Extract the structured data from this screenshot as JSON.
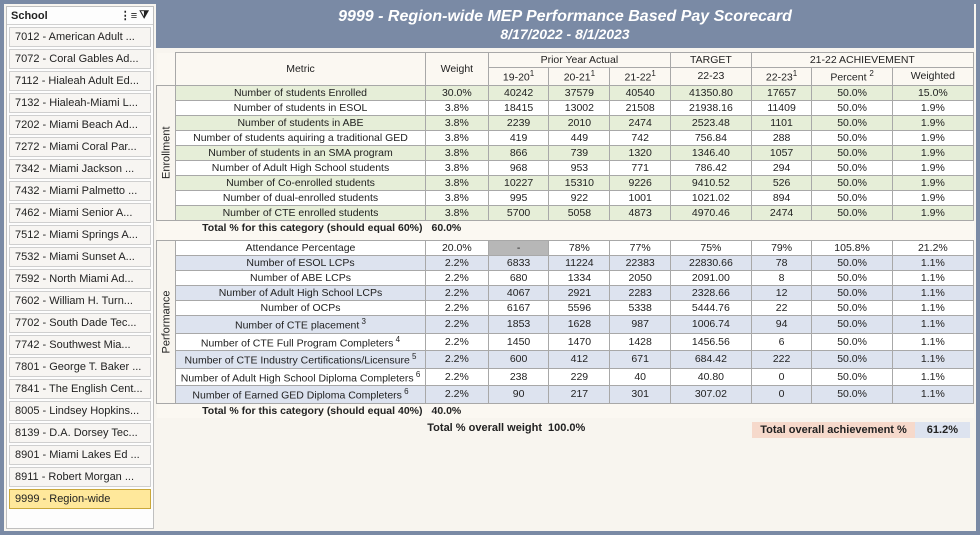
{
  "slicer": {
    "title": "School",
    "items": [
      "7012 - American Adult ...",
      "7072 - Coral Gables Ad...",
      "7112 - Hialeah Adult Ed...",
      "7132 - Hialeah-Miami L...",
      "7202 - Miami Beach Ad...",
      "7272 - Miami Coral Par...",
      "7342 - Miami Jackson ...",
      "7432 - Miami Palmetto ...",
      "7462 - Miami Senior A...",
      "7512 - Miami Springs A...",
      "7532 - Miami Sunset A...",
      "7592 - North Miami Ad...",
      "7602 - William H. Turn...",
      "7702 - South Dade Tec...",
      "7742 - Southwest Mia...",
      "7801 - George T. Baker ...",
      "7841 - The English Cent...",
      "8005 - Lindsey Hopkins...",
      "8139 - D.A. Dorsey Tec...",
      "8901 - Miami Lakes Ed ...",
      "8911 - Robert Morgan ...",
      "9999 - Region-wide"
    ],
    "selected": "9999 - Region-wide"
  },
  "title": {
    "line1": "9999 - Region-wide MEP Performance Based Pay Scorecard",
    "line2": "8/17/2022 - 8/1/2023"
  },
  "headers": {
    "metric": "Metric",
    "weight": "Weight",
    "prior": "Prior Year Actual",
    "y1": "19-20",
    "y2": "20-21",
    "y3": "21-22",
    "target": "TARGET",
    "target_year": "22-23",
    "ach": "21-22 ACHIEVEMENT",
    "ach_year": "22-23",
    "percent": "Percent",
    "weighted": "Weighted"
  },
  "sup": {
    "one": "1",
    "two": "2"
  },
  "categories": {
    "enroll": "Enrollment",
    "perf": "Performance"
  },
  "enrollment_rows": [
    {
      "metric": "Number of students Enrolled",
      "weight": "30.0%",
      "y1": "40242",
      "y2": "37579",
      "y3": "40540",
      "target": "41350.80",
      "ach": "17657",
      "pct": "50.0%",
      "wt": "15.0%",
      "shade": "green"
    },
    {
      "metric": "Number of students in ESOL",
      "weight": "3.8%",
      "y1": "18415",
      "y2": "13002",
      "y3": "21508",
      "target": "21938.16",
      "ach": "11409",
      "pct": "50.0%",
      "wt": "1.9%",
      "shade": "white"
    },
    {
      "metric": "Number of students in ABE",
      "weight": "3.8%",
      "y1": "2239",
      "y2": "2010",
      "y3": "2474",
      "target": "2523.48",
      "ach": "1101",
      "pct": "50.0%",
      "wt": "1.9%",
      "shade": "green"
    },
    {
      "metric": "Number of students aquiring a traditional GED",
      "weight": "3.8%",
      "y1": "419",
      "y2": "449",
      "y3": "742",
      "target": "756.84",
      "ach": "288",
      "pct": "50.0%",
      "wt": "1.9%",
      "shade": "white"
    },
    {
      "metric": "Number of students in an SMA program",
      "weight": "3.8%",
      "y1": "866",
      "y2": "739",
      "y3": "1320",
      "target": "1346.40",
      "ach": "1057",
      "pct": "50.0%",
      "wt": "1.9%",
      "shade": "green"
    },
    {
      "metric": "Number of Adult High School students",
      "weight": "3.8%",
      "y1": "968",
      "y2": "953",
      "y3": "771",
      "target": "786.42",
      "ach": "294",
      "pct": "50.0%",
      "wt": "1.9%",
      "shade": "white"
    },
    {
      "metric": "Number of Co-enrolled students",
      "weight": "3.8%",
      "y1": "10227",
      "y2": "15310",
      "y3": "9226",
      "target": "9410.52",
      "ach": "526",
      "pct": "50.0%",
      "wt": "1.9%",
      "shade": "green"
    },
    {
      "metric": "Number of dual-enrolled students",
      "weight": "3.8%",
      "y1": "995",
      "y2": "922",
      "y3": "1001",
      "target": "1021.02",
      "ach": "894",
      "pct": "50.0%",
      "wt": "1.9%",
      "shade": "white"
    },
    {
      "metric": "Number of CTE enrolled students",
      "weight": "3.8%",
      "y1": "5700",
      "y2": "5058",
      "y3": "4873",
      "target": "4970.46",
      "ach": "2474",
      "pct": "50.0%",
      "wt": "1.9%",
      "shade": "green"
    }
  ],
  "enroll_total": {
    "label": "Total % for this category (should equal 60%)",
    "value": "60.0%"
  },
  "performance_rows": [
    {
      "metric": "Attendance Percentage",
      "weight": "20.0%",
      "y1": "-",
      "y2": "78%",
      "y3": "77%",
      "target": "75%",
      "ach": "79%",
      "pct": "105.8%",
      "wt": "21.2%",
      "shade": "white",
      "y1grey": true
    },
    {
      "metric": "Number of ESOL LCPs",
      "weight": "2.2%",
      "y1": "6833",
      "y2": "11224",
      "y3": "22383",
      "target": "22830.66",
      "ach": "78",
      "pct": "50.0%",
      "wt": "1.1%",
      "shade": "blue"
    },
    {
      "metric": "Number of ABE LCPs",
      "weight": "2.2%",
      "y1": "680",
      "y2": "1334",
      "y3": "2050",
      "target": "2091.00",
      "ach": "8",
      "pct": "50.0%",
      "wt": "1.1%",
      "shade": "white"
    },
    {
      "metric": "Number of Adult High School LCPs",
      "weight": "2.2%",
      "y1": "4067",
      "y2": "2921",
      "y3": "2283",
      "target": "2328.66",
      "ach": "12",
      "pct": "50.0%",
      "wt": "1.1%",
      "shade": "blue"
    },
    {
      "metric": "Number of OCPs",
      "weight": "2.2%",
      "y1": "6167",
      "y2": "5596",
      "y3": "5338",
      "target": "5444.76",
      "ach": "22",
      "pct": "50.0%",
      "wt": "1.1%",
      "shade": "white"
    },
    {
      "metric": "Number of CTE placement",
      "sup": "3",
      "weight": "2.2%",
      "y1": "1853",
      "y2": "1628",
      "y3": "987",
      "target": "1006.74",
      "ach": "94",
      "pct": "50.0%",
      "wt": "1.1%",
      "shade": "blue"
    },
    {
      "metric": "Number of CTE Full Program Completers",
      "sup": "4",
      "weight": "2.2%",
      "y1": "1450",
      "y2": "1470",
      "y3": "1428",
      "target": "1456.56",
      "ach": "6",
      "pct": "50.0%",
      "wt": "1.1%",
      "shade": "white"
    },
    {
      "metric": "Number of CTE Industry Certifications/Licensure",
      "sup": "5",
      "weight": "2.2%",
      "y1": "600",
      "y2": "412",
      "y3": "671",
      "target": "684.42",
      "ach": "222",
      "pct": "50.0%",
      "wt": "1.1%",
      "shade": "blue"
    },
    {
      "metric": "Number of Adult High School Diploma Completers",
      "sup": "6",
      "weight": "2.2%",
      "y1": "238",
      "y2": "229",
      "y3": "40",
      "target": "40.80",
      "ach": "0",
      "pct": "50.0%",
      "wt": "1.1%",
      "shade": "white"
    },
    {
      "metric": "Number of Earned GED Diploma Completers",
      "sup": "6",
      "weight": "2.2%",
      "y1": "90",
      "y2": "217",
      "y3": "301",
      "target": "307.02",
      "ach": "0",
      "pct": "50.0%",
      "wt": "1.1%",
      "shade": "blue"
    }
  ],
  "perf_total": {
    "label": "Total % for this category (should equal 40%)",
    "value": "40.0%"
  },
  "footer": {
    "weight_label": "Total % overall weight",
    "weight_value": "100.0%",
    "ach_label": "Total overall achievement %",
    "ach_value": "61.2%"
  }
}
